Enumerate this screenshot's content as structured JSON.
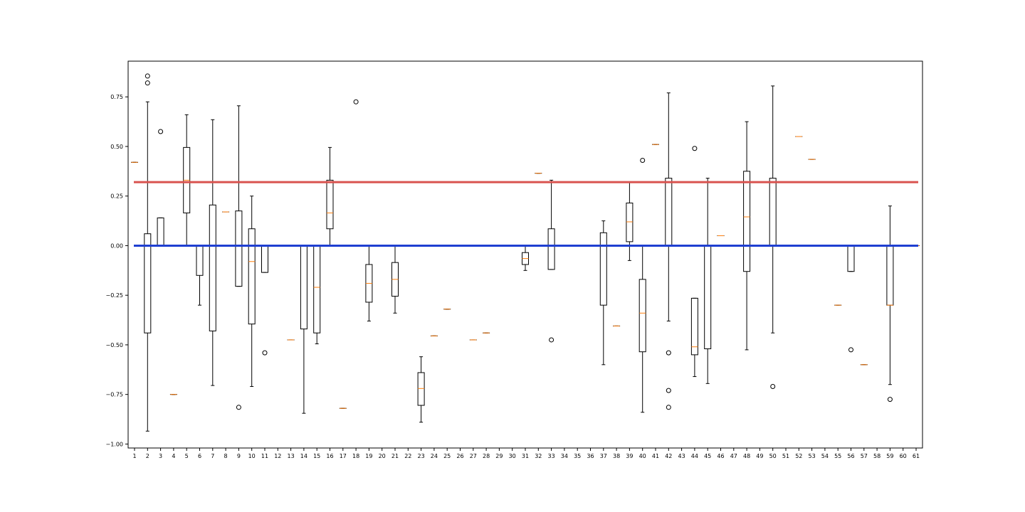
{
  "chart_data": {
    "type": "box",
    "title": "",
    "xlabel": "",
    "ylabel": "",
    "ylim": [
      -1.02,
      0.93
    ],
    "yticks": [
      -1.0,
      -0.75,
      -0.5,
      -0.25,
      0.0,
      0.25,
      0.5,
      0.75
    ],
    "ytick_labels": [
      "−1.00",
      "−0.75",
      "−0.50",
      "−0.25",
      "0.00",
      "0.25",
      "0.50",
      "0.75"
    ],
    "categories": [
      "1",
      "2",
      "3",
      "4",
      "5",
      "6",
      "7",
      "8",
      "9",
      "10",
      "11",
      "12",
      "13",
      "14",
      "15",
      "16",
      "17",
      "18",
      "19",
      "20",
      "21",
      "22",
      "23",
      "24",
      "25",
      "26",
      "27",
      "28",
      "29",
      "30",
      "31",
      "32",
      "33",
      "34",
      "35",
      "36",
      "37",
      "38",
      "39",
      "40",
      "41",
      "42",
      "43",
      "44",
      "45",
      "46",
      "47",
      "48",
      "49",
      "50",
      "51",
      "52",
      "53",
      "54",
      "55",
      "56",
      "57",
      "58",
      "59",
      "60",
      "61"
    ],
    "grid": false,
    "reference_lines": [
      {
        "y": 0.32,
        "color": "#d9534f"
      },
      {
        "y": 0.0,
        "color": "#1f3fd1"
      }
    ],
    "box_color": "#000000",
    "median_color": "#ff7f0e",
    "boxes": [
      {
        "q1": 0.42,
        "med": 0.42,
        "q3": 0.42,
        "wl": 0.42,
        "wh": 0.42,
        "fl": []
      },
      {
        "q1": -0.44,
        "med": 0.0,
        "q3": 0.06,
        "wl": -0.935,
        "wh": 0.725,
        "fl": [
          0.855,
          0.82
        ]
      },
      {
        "q1": 0.0,
        "med": 0.0,
        "q3": 0.14,
        "wl": 0.0,
        "wh": 0.14,
        "fl": [
          0.575
        ]
      },
      {
        "q1": -0.75,
        "med": -0.75,
        "q3": -0.75,
        "wl": -0.75,
        "wh": -0.75,
        "fl": []
      },
      {
        "q1": 0.165,
        "med": 0.33,
        "q3": 0.495,
        "wl": 0.0,
        "wh": 0.66,
        "fl": []
      },
      {
        "q1": -0.15,
        "med": 0.0,
        "q3": 0.0,
        "wl": -0.3,
        "wh": 0.0,
        "fl": []
      },
      {
        "q1": -0.43,
        "med": 0.0,
        "q3": 0.205,
        "wl": -0.705,
        "wh": 0.635,
        "fl": []
      },
      {
        "q1": 0.17,
        "med": 0.17,
        "q3": 0.17,
        "wl": 0.17,
        "wh": 0.17,
        "fl": []
      },
      {
        "q1": -0.205,
        "med": 0.0,
        "q3": 0.175,
        "wl": -0.205,
        "wh": 0.705,
        "fl": [
          -0.815
        ]
      },
      {
        "q1": -0.395,
        "med": -0.08,
        "q3": 0.085,
        "wl": -0.71,
        "wh": 0.25,
        "fl": []
      },
      {
        "q1": -0.135,
        "med": 0.0,
        "q3": 0.0,
        "wl": -0.135,
        "wh": 0.0,
        "fl": [
          -0.54
        ]
      },
      {
        "q1": 0.0,
        "med": 0.0,
        "q3": 0.0,
        "wl": 0.0,
        "wh": 0.0,
        "fl": []
      },
      {
        "q1": -0.475,
        "med": -0.475,
        "q3": -0.475,
        "wl": -0.475,
        "wh": -0.475,
        "fl": []
      },
      {
        "q1": -0.42,
        "med": 0.0,
        "q3": 0.0,
        "wl": -0.845,
        "wh": 0.0,
        "fl": []
      },
      {
        "q1": -0.44,
        "med": -0.21,
        "q3": 0.0,
        "wl": -0.495,
        "wh": 0.0,
        "fl": []
      },
      {
        "q1": 0.085,
        "med": 0.165,
        "q3": 0.33,
        "wl": 0.0,
        "wh": 0.495,
        "fl": []
      },
      {
        "q1": -0.82,
        "med": -0.82,
        "q3": -0.82,
        "wl": -0.82,
        "wh": -0.82,
        "fl": []
      },
      {
        "q1": 0.0,
        "med": 0.0,
        "q3": 0.0,
        "wl": 0.0,
        "wh": 0.0,
        "fl": [
          0.725
        ]
      },
      {
        "q1": -0.285,
        "med": -0.19,
        "q3": -0.095,
        "wl": -0.38,
        "wh": 0.0,
        "fl": []
      },
      {
        "q1": 0.0,
        "med": 0.0,
        "q3": 0.0,
        "wl": 0.0,
        "wh": 0.0,
        "fl": []
      },
      {
        "q1": -0.255,
        "med": -0.17,
        "q3": -0.085,
        "wl": -0.34,
        "wh": 0.0,
        "fl": []
      },
      {
        "q1": 0.0,
        "med": 0.0,
        "q3": 0.0,
        "wl": 0.0,
        "wh": 0.0,
        "fl": []
      },
      {
        "q1": -0.805,
        "med": -0.72,
        "q3": -0.64,
        "wl": -0.89,
        "wh": -0.56,
        "fl": []
      },
      {
        "q1": -0.455,
        "med": -0.455,
        "q3": -0.455,
        "wl": -0.455,
        "wh": -0.455,
        "fl": []
      },
      {
        "q1": -0.32,
        "med": -0.32,
        "q3": -0.32,
        "wl": -0.32,
        "wh": -0.32,
        "fl": []
      },
      {
        "q1": 0.0,
        "med": 0.0,
        "q3": 0.0,
        "wl": 0.0,
        "wh": 0.0,
        "fl": []
      },
      {
        "q1": -0.475,
        "med": -0.475,
        "q3": -0.475,
        "wl": -0.475,
        "wh": -0.475,
        "fl": []
      },
      {
        "q1": -0.44,
        "med": -0.44,
        "q3": -0.44,
        "wl": -0.44,
        "wh": -0.44,
        "fl": []
      },
      {
        "q1": 0.0,
        "med": 0.0,
        "q3": 0.0,
        "wl": 0.0,
        "wh": 0.0,
        "fl": []
      },
      {
        "q1": 0.0,
        "med": 0.0,
        "q3": 0.0,
        "wl": 0.0,
        "wh": 0.0,
        "fl": []
      },
      {
        "q1": -0.095,
        "med": -0.065,
        "q3": -0.035,
        "wl": -0.125,
        "wh": 0.0,
        "fl": []
      },
      {
        "q1": 0.365,
        "med": 0.365,
        "q3": 0.365,
        "wl": 0.365,
        "wh": 0.365,
        "fl": []
      },
      {
        "q1": -0.12,
        "med": 0.0,
        "q3": 0.085,
        "wl": -0.12,
        "wh": 0.33,
        "fl": [
          -0.475
        ]
      },
      {
        "q1": 0.0,
        "med": 0.0,
        "q3": 0.0,
        "wl": 0.0,
        "wh": 0.0,
        "fl": []
      },
      {
        "q1": 0.0,
        "med": 0.0,
        "q3": 0.0,
        "wl": 0.0,
        "wh": 0.0,
        "fl": []
      },
      {
        "q1": 0.0,
        "med": 0.0,
        "q3": 0.0,
        "wl": 0.0,
        "wh": 0.0,
        "fl": []
      },
      {
        "q1": -0.3,
        "med": 0.0,
        "q3": 0.065,
        "wl": -0.6,
        "wh": 0.125,
        "fl": []
      },
      {
        "q1": -0.405,
        "med": -0.405,
        "q3": -0.405,
        "wl": -0.405,
        "wh": -0.405,
        "fl": []
      },
      {
        "q1": 0.02,
        "med": 0.12,
        "q3": 0.215,
        "wl": -0.075,
        "wh": 0.32,
        "fl": []
      },
      {
        "q1": -0.535,
        "med": -0.34,
        "q3": -0.17,
        "wl": -0.84,
        "wh": 0.0,
        "fl": [
          0.43
        ]
      },
      {
        "q1": 0.51,
        "med": 0.51,
        "q3": 0.51,
        "wl": 0.51,
        "wh": 0.51,
        "fl": []
      },
      {
        "q1": 0.0,
        "med": 0.0,
        "q3": 0.34,
        "wl": -0.38,
        "wh": 0.77,
        "fl": [
          -0.54,
          -0.73,
          -0.815
        ]
      },
      {
        "q1": 0.0,
        "med": 0.0,
        "q3": 0.0,
        "wl": 0.0,
        "wh": 0.0,
        "fl": []
      },
      {
        "q1": -0.55,
        "med": -0.51,
        "q3": -0.265,
        "wl": -0.66,
        "wh": -0.265,
        "fl": [
          0.49
        ]
      },
      {
        "q1": -0.52,
        "med": 0.0,
        "q3": 0.0,
        "wl": -0.695,
        "wh": 0.34,
        "fl": []
      },
      {
        "q1": 0.05,
        "med": 0.05,
        "q3": 0.05,
        "wl": 0.05,
        "wh": 0.05,
        "fl": []
      },
      {
        "q1": 0.0,
        "med": 0.0,
        "q3": 0.0,
        "wl": 0.0,
        "wh": 0.0,
        "fl": []
      },
      {
        "q1": -0.13,
        "med": 0.145,
        "q3": 0.375,
        "wl": -0.525,
        "wh": 0.625,
        "fl": []
      },
      {
        "q1": 0.0,
        "med": 0.0,
        "q3": 0.0,
        "wl": 0.0,
        "wh": 0.0,
        "fl": []
      },
      {
        "q1": 0.0,
        "med": 0.0,
        "q3": 0.34,
        "wl": -0.44,
        "wh": 0.805,
        "fl": [
          -0.71
        ]
      },
      {
        "q1": 0.0,
        "med": 0.0,
        "q3": 0.0,
        "wl": 0.0,
        "wh": 0.0,
        "fl": []
      },
      {
        "q1": 0.55,
        "med": 0.55,
        "q3": 0.55,
        "wl": 0.55,
        "wh": 0.55,
        "fl": []
      },
      {
        "q1": 0.435,
        "med": 0.435,
        "q3": 0.435,
        "wl": 0.435,
        "wh": 0.435,
        "fl": []
      },
      {
        "q1": 0.0,
        "med": 0.0,
        "q3": 0.0,
        "wl": 0.0,
        "wh": 0.0,
        "fl": []
      },
      {
        "q1": -0.3,
        "med": -0.3,
        "q3": -0.3,
        "wl": -0.3,
        "wh": -0.3,
        "fl": []
      },
      {
        "q1": -0.13,
        "med": 0.0,
        "q3": 0.0,
        "wl": -0.13,
        "wh": 0.0,
        "fl": [
          -0.525
        ]
      },
      {
        "q1": -0.6,
        "med": -0.6,
        "q3": -0.6,
        "wl": -0.6,
        "wh": -0.6,
        "fl": []
      },
      {
        "q1": 0.0,
        "med": 0.0,
        "q3": 0.0,
        "wl": 0.0,
        "wh": 0.0,
        "fl": []
      },
      {
        "q1": -0.3,
        "med": -0.3,
        "q3": 0.0,
        "wl": -0.7,
        "wh": 0.2,
        "fl": [
          -0.775
        ]
      },
      {
        "q1": 0.0,
        "med": 0.0,
        "q3": 0.0,
        "wl": 0.0,
        "wh": 0.0,
        "fl": []
      },
      {
        "q1": 0.0,
        "med": 0.0,
        "q3": 0.0,
        "wl": 0.0,
        "wh": 0.0,
        "fl": []
      }
    ]
  }
}
